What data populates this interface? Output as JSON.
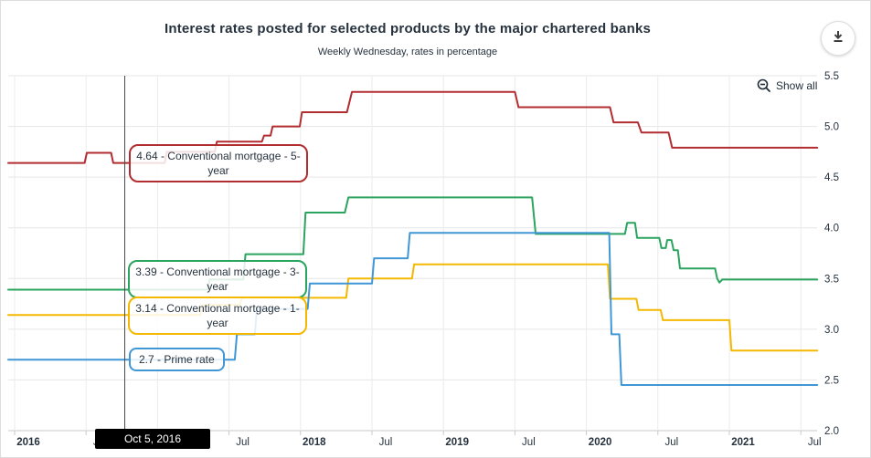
{
  "header": {
    "title": "Interest rates posted for selected products by the major chartered banks",
    "subtitle": "Weekly Wednesday, rates in percentage"
  },
  "controls": {
    "show_all_label": "Show all"
  },
  "series_labels": {
    "mortgage_5y": "4.64 - Conventional mortgage - 5-year",
    "mortgage_3y": "3.39 - Conventional mortgage - 3-year",
    "mortgage_1y": "3.14 - Conventional mortgage - 1-year",
    "prime": "2.7 - Prime rate"
  },
  "cursor": {
    "date_label": "Oct 5, 2016"
  },
  "chart_data": {
    "type": "line",
    "title": "Interest rates posted for selected products by the major chartered banks",
    "subtitle": "Weekly Wednesday, rates in percentage",
    "x_axis": {
      "unit": "date",
      "ticks": [
        {
          "label": "2016",
          "bold": true
        },
        {
          "label": "Jul",
          "bold": false
        },
        {
          "label": "2017",
          "bold": true
        },
        {
          "label": "Jul",
          "bold": false
        },
        {
          "label": "2018",
          "bold": true
        },
        {
          "label": "Jul",
          "bold": false
        },
        {
          "label": "2019",
          "bold": true
        },
        {
          "label": "Jul",
          "bold": false
        },
        {
          "label": "2020",
          "bold": true
        },
        {
          "label": "Jul",
          "bold": false
        },
        {
          "label": "2021",
          "bold": true
        },
        {
          "label": "Jul",
          "bold": false
        }
      ]
    },
    "y_axis": {
      "min": 2.0,
      "max": 5.5,
      "step": 0.5,
      "side": "right"
    },
    "grid": true,
    "legend": "none",
    "cursor": {
      "date": "Oct 5, 2016",
      "values": {
        "Conventional mortgage - 5-year": 4.64,
        "Conventional mortgage - 3-year": 3.39,
        "Conventional mortgage - 1-year": 3.14,
        "Prime rate": 2.7
      }
    },
    "series": [
      {
        "name": "Conventional mortgage - 5-year",
        "color": "#b22d30",
        "points": [
          [
            2015.955,
            4.64
          ],
          [
            2016.49,
            4.64
          ],
          [
            2016.505,
            4.74
          ],
          [
            2016.675,
            4.74
          ],
          [
            2016.69,
            4.64
          ],
          [
            2017.05,
            4.64
          ],
          [
            2017.065,
            4.75
          ],
          [
            2017.4,
            4.75
          ],
          [
            2017.415,
            4.85
          ],
          [
            2017.73,
            4.85
          ],
          [
            2017.745,
            4.91
          ],
          [
            2017.79,
            4.91
          ],
          [
            2017.805,
            5.0
          ],
          [
            2017.995,
            5.0
          ],
          [
            2018.01,
            5.14
          ],
          [
            2018.325,
            5.14
          ],
          [
            2018.36,
            5.34
          ],
          [
            2019.5,
            5.34
          ],
          [
            2019.525,
            5.19
          ],
          [
            2020.165,
            5.19
          ],
          [
            2020.19,
            5.04
          ],
          [
            2020.36,
            5.04
          ],
          [
            2020.385,
            4.94
          ],
          [
            2020.575,
            4.94
          ],
          [
            2020.6,
            4.79
          ],
          [
            2021.615,
            4.79
          ]
        ]
      },
      {
        "name": "Conventional mortgage - 3-year",
        "color": "#2aa45e",
        "points": [
          [
            2015.955,
            3.39
          ],
          [
            2017.35,
            3.39
          ],
          [
            2017.365,
            3.49
          ],
          [
            2017.6,
            3.49
          ],
          [
            2017.615,
            3.74
          ],
          [
            2018.02,
            3.74
          ],
          [
            2018.035,
            4.15
          ],
          [
            2018.31,
            4.15
          ],
          [
            2018.335,
            4.3
          ],
          [
            2019.62,
            4.3
          ],
          [
            2019.645,
            3.94
          ],
          [
            2020.27,
            3.94
          ],
          [
            2020.285,
            4.05
          ],
          [
            2020.34,
            4.05
          ],
          [
            2020.355,
            3.9
          ],
          [
            2020.51,
            3.9
          ],
          [
            2020.525,
            3.8
          ],
          [
            2020.555,
            3.8
          ],
          [
            2020.565,
            3.88
          ],
          [
            2020.595,
            3.88
          ],
          [
            2020.61,
            3.78
          ],
          [
            2020.64,
            3.78
          ],
          [
            2020.655,
            3.6
          ],
          [
            2020.9,
            3.6
          ],
          [
            2020.915,
            3.5
          ],
          [
            2020.93,
            3.46
          ],
          [
            2020.95,
            3.49
          ],
          [
            2021.615,
            3.49
          ]
        ]
      },
      {
        "name": "Conventional mortgage - 1-year",
        "color": "#f5b800",
        "points": [
          [
            2015.955,
            3.14
          ],
          [
            2017.3,
            3.14
          ],
          [
            2017.315,
            3.24
          ],
          [
            2017.575,
            3.24
          ],
          [
            2017.59,
            3.31
          ],
          [
            2018.32,
            3.31
          ],
          [
            2018.335,
            3.5
          ],
          [
            2018.78,
            3.5
          ],
          [
            2018.795,
            3.64
          ],
          [
            2020.15,
            3.64
          ],
          [
            2020.165,
            3.3
          ],
          [
            2020.35,
            3.3
          ],
          [
            2020.365,
            3.19
          ],
          [
            2020.52,
            3.19
          ],
          [
            2020.535,
            3.09
          ],
          [
            2021.0,
            3.09
          ],
          [
            2021.015,
            2.79
          ],
          [
            2021.615,
            2.79
          ]
        ]
      },
      {
        "name": "Prime rate",
        "color": "#4196d5",
        "points": [
          [
            2015.955,
            2.7
          ],
          [
            2017.54,
            2.7
          ],
          [
            2017.555,
            2.95
          ],
          [
            2017.68,
            2.95
          ],
          [
            2017.695,
            3.2
          ],
          [
            2018.05,
            3.2
          ],
          [
            2018.065,
            3.45
          ],
          [
            2018.5,
            3.45
          ],
          [
            2018.515,
            3.7
          ],
          [
            2018.75,
            3.7
          ],
          [
            2018.765,
            3.95
          ],
          [
            2020.16,
            3.95
          ],
          [
            2020.175,
            2.95
          ],
          [
            2020.23,
            2.95
          ],
          [
            2020.245,
            2.45
          ],
          [
            2021.615,
            2.45
          ]
        ]
      }
    ]
  }
}
